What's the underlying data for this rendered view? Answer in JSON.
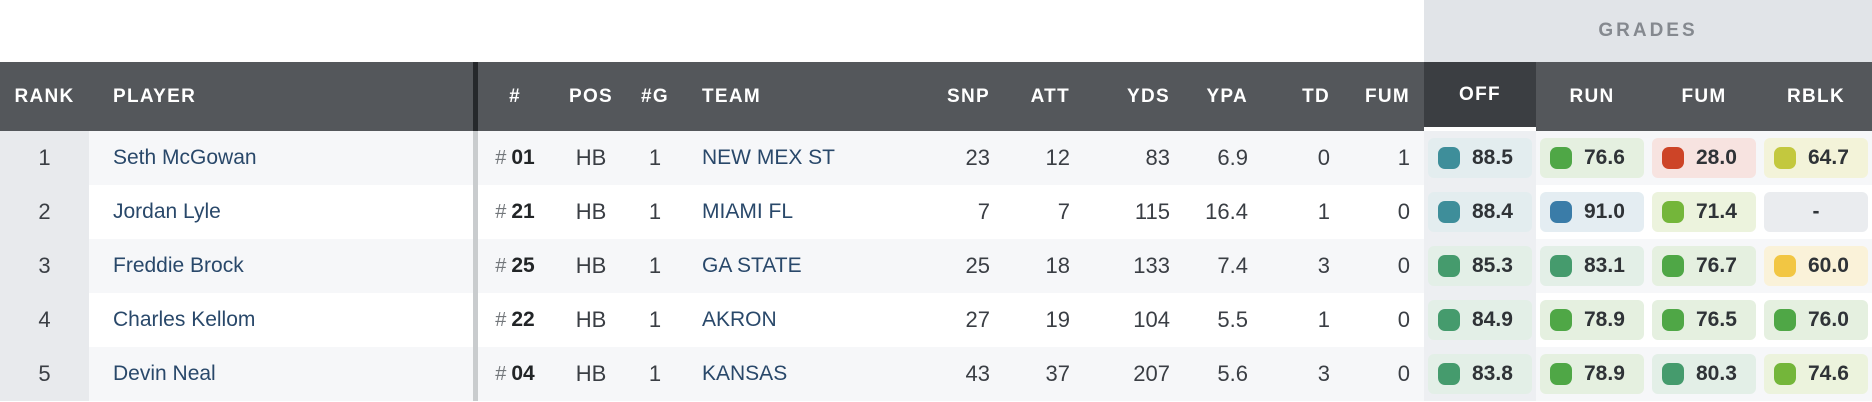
{
  "grades_banner": {
    "label": "GRADES"
  },
  "jersey_prefix": "#",
  "header": {
    "rank": "RANK",
    "player": "PLAYER",
    "jersey": "#",
    "pos": "POS",
    "games": "#G",
    "team": "TEAM",
    "snp": "SNP",
    "att": "ATT",
    "yds": "YDS",
    "ypa": "YPA",
    "td": "TD",
    "fum": "FUM",
    "grade_off": "OFF",
    "grade_run": "RUN",
    "grade_fum": "FUM",
    "grade_rblk": "RBLK"
  },
  "selected_grade_column": "OFF",
  "rows": [
    {
      "rank": "1",
      "player": "Seth McGowan",
      "jersey": "01",
      "pos": "HB",
      "games": "1",
      "team": "NEW MEX ST",
      "snp": "23",
      "att": "12",
      "yds": "83",
      "ypa": "6.9",
      "td": "0",
      "fum": "1",
      "grades": {
        "off": {
          "value": "88.5",
          "tier": "teal"
        },
        "run": {
          "value": "76.6",
          "tier": "green"
        },
        "fum": {
          "value": "28.0",
          "tier": "red"
        },
        "rblk": {
          "value": "64.7",
          "tier": "olive"
        }
      }
    },
    {
      "rank": "2",
      "player": "Jordan Lyle",
      "jersey": "21",
      "pos": "HB",
      "games": "1",
      "team": "MIAMI FL",
      "snp": "7",
      "att": "7",
      "yds": "115",
      "ypa": "16.4",
      "td": "1",
      "fum": "0",
      "grades": {
        "off": {
          "value": "88.4",
          "tier": "teal"
        },
        "run": {
          "value": "91.0",
          "tier": "blue"
        },
        "fum": {
          "value": "71.4",
          "tier": "lightgreen"
        },
        "rblk": {
          "value": "-",
          "tier": "none"
        }
      }
    },
    {
      "rank": "3",
      "player": "Freddie Brock",
      "jersey": "25",
      "pos": "HB",
      "games": "1",
      "team": "GA STATE",
      "snp": "25",
      "att": "18",
      "yds": "133",
      "ypa": "7.4",
      "td": "3",
      "fum": "0",
      "grades": {
        "off": {
          "value": "85.3",
          "tier": "seagreen"
        },
        "run": {
          "value": "83.1",
          "tier": "seagreen"
        },
        "fum": {
          "value": "76.7",
          "tier": "green"
        },
        "rblk": {
          "value": "60.0",
          "tier": "gold"
        }
      }
    },
    {
      "rank": "4",
      "player": "Charles Kellom",
      "jersey": "22",
      "pos": "HB",
      "games": "1",
      "team": "AKRON",
      "snp": "27",
      "att": "19",
      "yds": "104",
      "ypa": "5.5",
      "td": "1",
      "fum": "0",
      "grades": {
        "off": {
          "value": "84.9",
          "tier": "seagreen"
        },
        "run": {
          "value": "78.9",
          "tier": "green"
        },
        "fum": {
          "value": "76.5",
          "tier": "green"
        },
        "rblk": {
          "value": "76.0",
          "tier": "green"
        }
      }
    },
    {
      "rank": "5",
      "player": "Devin Neal",
      "jersey": "04",
      "pos": "HB",
      "games": "1",
      "team": "KANSAS",
      "snp": "43",
      "att": "37",
      "yds": "207",
      "ypa": "5.6",
      "td": "3",
      "fum": "0",
      "grades": {
        "off": {
          "value": "83.8",
          "tier": "seagreen"
        },
        "run": {
          "value": "78.9",
          "tier": "green"
        },
        "fum": {
          "value": "80.3",
          "tier": "seagreen"
        },
        "rblk": {
          "value": "74.6",
          "tier": "lightgreen"
        }
      }
    }
  ],
  "colors": {
    "header_bg": "#54575b",
    "header_selected_bg": "#3b3e42",
    "grades_band_bg": "#e1e4e8",
    "row_odd_bg": "#f6f7f9",
    "row_even_bg": "#ffffff",
    "rank_col_bg": "#e8eaed",
    "selected_col_bg": "#edeff2",
    "link_color": "#29486a",
    "tiers": {
      "blue": {
        "swatch": "#3a7ca8",
        "bg": "#e4edf2"
      },
      "teal": {
        "swatch": "#3e8e9a",
        "bg": "#e3edef"
      },
      "seagreen": {
        "swatch": "#459b6d",
        "bg": "#e3efe7"
      },
      "green": {
        "swatch": "#4fa746",
        "bg": "#e5f0e0"
      },
      "lightgreen": {
        "swatch": "#74b63a",
        "bg": "#ecf3dd"
      },
      "olive": {
        "swatch": "#c3c83e",
        "bg": "#f3f3d9"
      },
      "gold": {
        "swatch": "#f2c643",
        "bg": "#faf2d9"
      },
      "red": {
        "swatch": "#cd4427",
        "bg": "#f7e3e0"
      },
      "none": {
        "swatch": "",
        "bg": "#eaecef"
      }
    }
  }
}
